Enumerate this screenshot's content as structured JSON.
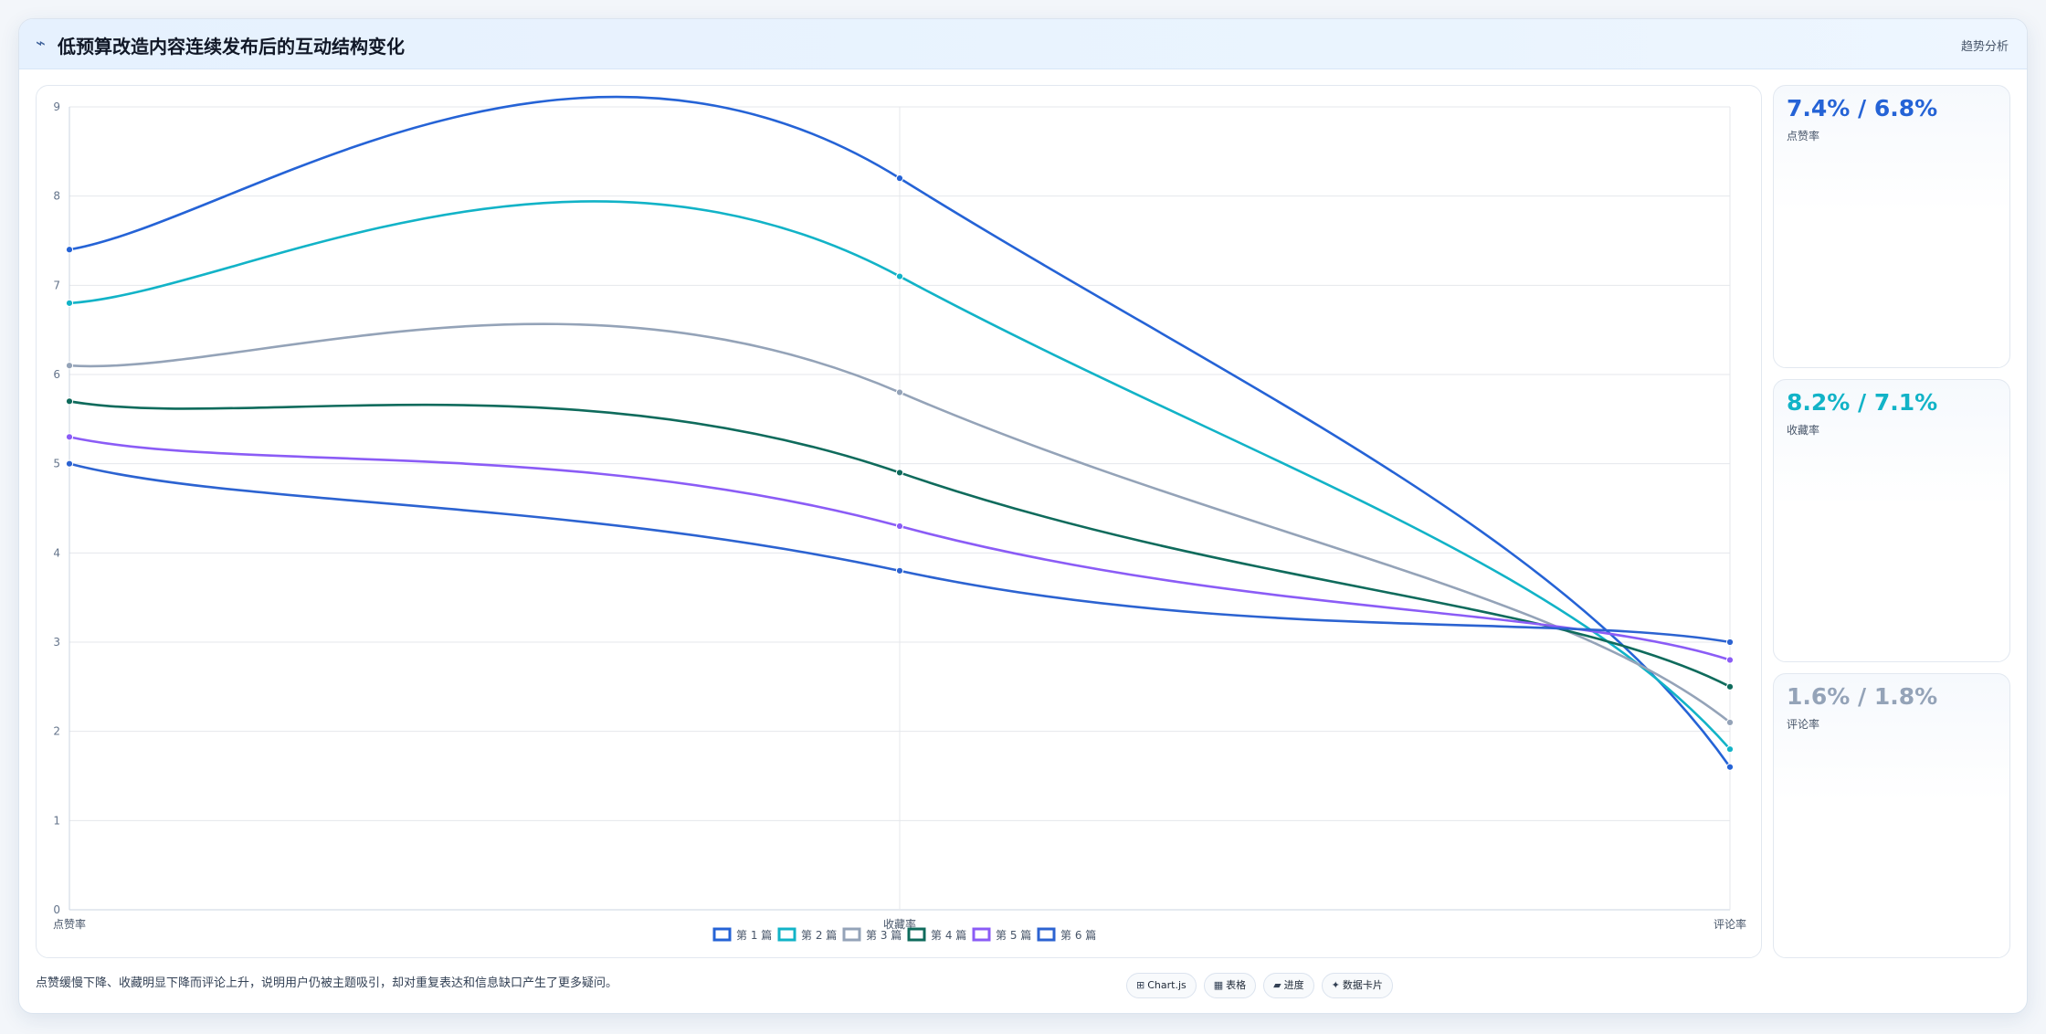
{
  "header": {
    "title": "低预算改造内容连续发布后的互动结构变化",
    "tag": "趋势分析",
    "icon": "trend-icon"
  },
  "chart_data": {
    "type": "line",
    "categories": [
      "点赞率",
      "收藏率",
      "评论率"
    ],
    "ylim": [
      0,
      9
    ],
    "yticks": [
      0,
      1,
      2,
      3,
      4,
      5,
      6,
      7,
      8,
      9
    ],
    "grid": true,
    "legend_position": "bottom",
    "series": [
      {
        "name": "第 1 篇",
        "color": "#2563d6",
        "values": [
          7.4,
          8.2,
          1.6
        ]
      },
      {
        "name": "第 2 篇",
        "color": "#12b3c7",
        "values": [
          6.8,
          7.1,
          1.8
        ]
      },
      {
        "name": "第 3 篇",
        "color": "#94a3b8",
        "values": [
          6.1,
          5.8,
          2.1
        ]
      },
      {
        "name": "第 4 篇",
        "color": "#0f6b5c",
        "values": [
          5.7,
          4.9,
          2.5
        ]
      },
      {
        "name": "第 5 篇",
        "color": "#8b5cf6",
        "values": [
          5.3,
          4.3,
          2.8
        ]
      },
      {
        "name": "第 6 篇",
        "color": "#2c63d1",
        "values": [
          5.0,
          3.8,
          3.0
        ]
      }
    ]
  },
  "stats": [
    {
      "value": "7.4% / 6.8%",
      "label": "点赞率",
      "color": "#2563d6"
    },
    {
      "value": "8.2% / 7.1%",
      "label": "收藏率",
      "color": "#12b3c7"
    },
    {
      "value": "1.6% / 1.8%",
      "label": "评论率",
      "color": "#94a3b8"
    }
  ],
  "footnote": "点赞缓慢下降、收藏明显下降而评论上升，说明用户仍被主题吸引，却对重复表达和信息缺口产生了更多疑问。",
  "chips": [
    {
      "label": "Chart.js",
      "icon": "chart-icon",
      "glyph": "⊞"
    },
    {
      "label": "表格",
      "icon": "table-icon",
      "glyph": "▦"
    },
    {
      "label": "进度",
      "icon": "progress-icon",
      "glyph": "▰"
    },
    {
      "label": "数据卡片",
      "icon": "sparkle-icon",
      "glyph": "✦"
    }
  ]
}
